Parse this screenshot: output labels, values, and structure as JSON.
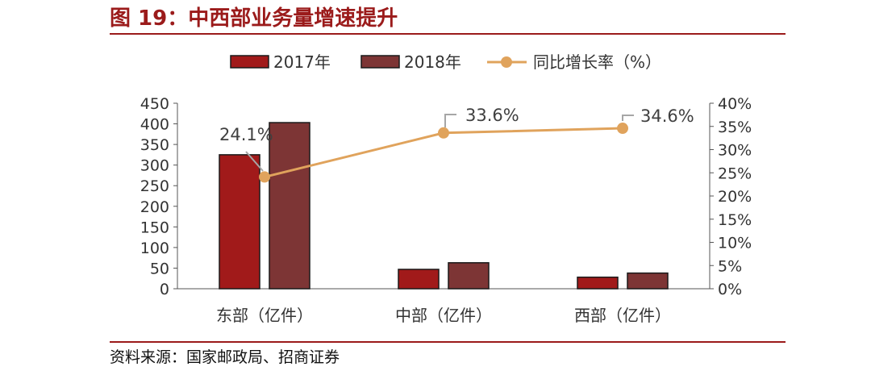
{
  "figure": {
    "title": "图 19：中西部业务量增速提升",
    "source": "资料来源：国家邮政局、招商证券"
  },
  "colors": {
    "series_2017": "#a11a1a",
    "series_2018": "#7d3535",
    "growth_line": "#e0a35c",
    "accent": "#9b1b1b"
  },
  "chart_data": {
    "type": "bar",
    "categories": [
      "东部（亿件）",
      "中部（亿件）",
      "西部（亿件）"
    ],
    "series": [
      {
        "name": "2017年",
        "type": "bar",
        "axis": "left",
        "values": [
          325,
          47,
          28
        ]
      },
      {
        "name": "2018年",
        "type": "bar",
        "axis": "left",
        "values": [
          403,
          63,
          38
        ]
      },
      {
        "name": "同比增长率（%）",
        "type": "line",
        "axis": "right",
        "values": [
          24.1,
          33.6,
          34.6
        ],
        "labels": [
          "24.1%",
          "33.6%",
          "34.6%"
        ]
      }
    ],
    "left_axis": {
      "ylim": [
        0,
        450
      ],
      "ticks": [
        "0",
        "50",
        "100",
        "150",
        "200",
        "250",
        "300",
        "350",
        "400",
        "450"
      ]
    },
    "right_axis": {
      "ylim": [
        0,
        40
      ],
      "ticks": [
        "0%",
        "5%",
        "10%",
        "15%",
        "20%",
        "25%",
        "30%",
        "35%",
        "40%"
      ]
    },
    "legend_position": "top-center",
    "grid": false
  }
}
